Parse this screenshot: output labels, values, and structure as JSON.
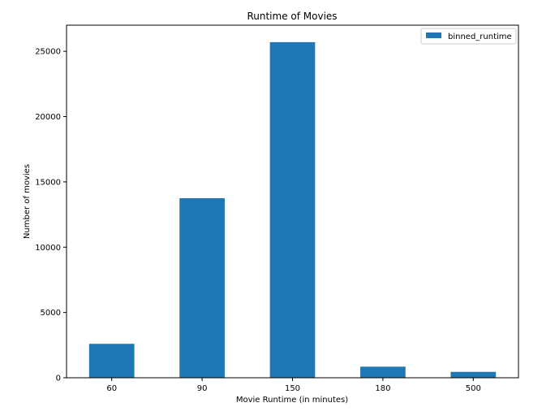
{
  "chart_data": {
    "type": "bar",
    "title": "Runtime of Movies",
    "xlabel": "Movie Runtime (in minutes)",
    "ylabel": "Number of movies",
    "categories": [
      "60",
      "90",
      "150",
      "180",
      "500"
    ],
    "series": [
      {
        "name": "binned_runtime",
        "values": [
          2600,
          13750,
          25700,
          850,
          450
        ],
        "color": "#1f77b4"
      }
    ],
    "ylim": [
      0,
      27000
    ],
    "yticks": [
      0,
      5000,
      10000,
      15000,
      20000,
      25000
    ],
    "grid": false,
    "legend_position": "top-right"
  }
}
